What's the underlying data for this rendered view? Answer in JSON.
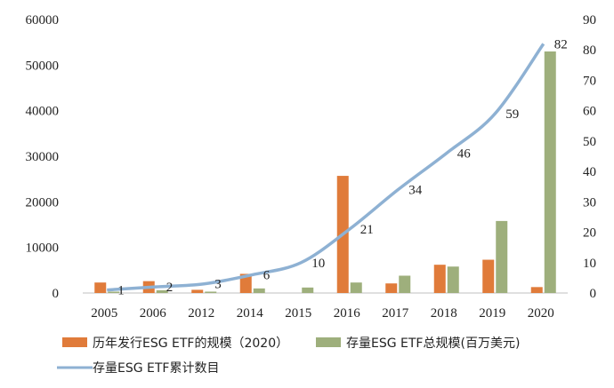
{
  "chart_data": {
    "type": "bar",
    "categories": [
      "2005",
      "2006",
      "2012",
      "2014",
      "2015",
      "2016",
      "2017",
      "2018",
      "2019",
      "2020"
    ],
    "series": [
      {
        "name": "历年发行ESG ETF的规模（2020）",
        "type": "bar",
        "axis": "left",
        "color": "#E07B3A",
        "values": [
          2300,
          2600,
          700,
          4200,
          0,
          25700,
          2100,
          6200,
          7300,
          1300
        ]
      },
      {
        "name": "存量ESG ETF总规模(百万美元)",
        "type": "bar",
        "axis": "left",
        "color": "#9EAF7C",
        "values": [
          300,
          600,
          300,
          1000,
          1200,
          2300,
          3800,
          5800,
          15800,
          53000
        ]
      },
      {
        "name": "存量ESG ETF累计数目",
        "type": "line",
        "axis": "right",
        "color": "#8EB1D3",
        "values": [
          1,
          2,
          3,
          6,
          10,
          21,
          34,
          46,
          59,
          82
        ],
        "data_labels": [
          "1",
          "2",
          "3",
          "6",
          "10",
          "21",
          "34",
          "46",
          "59",
          "82"
        ]
      }
    ],
    "y_left": {
      "min": 0,
      "max": 60000,
      "ticks": [
        "0",
        "10000",
        "20000",
        "30000",
        "40000",
        "50000",
        "60000"
      ]
    },
    "y_right": {
      "min": 0,
      "max": 90,
      "ticks": [
        "0",
        "10",
        "20",
        "30",
        "40",
        "50",
        "60",
        "70",
        "80",
        "90"
      ]
    },
    "grid": false,
    "legend_position": "bottom"
  }
}
